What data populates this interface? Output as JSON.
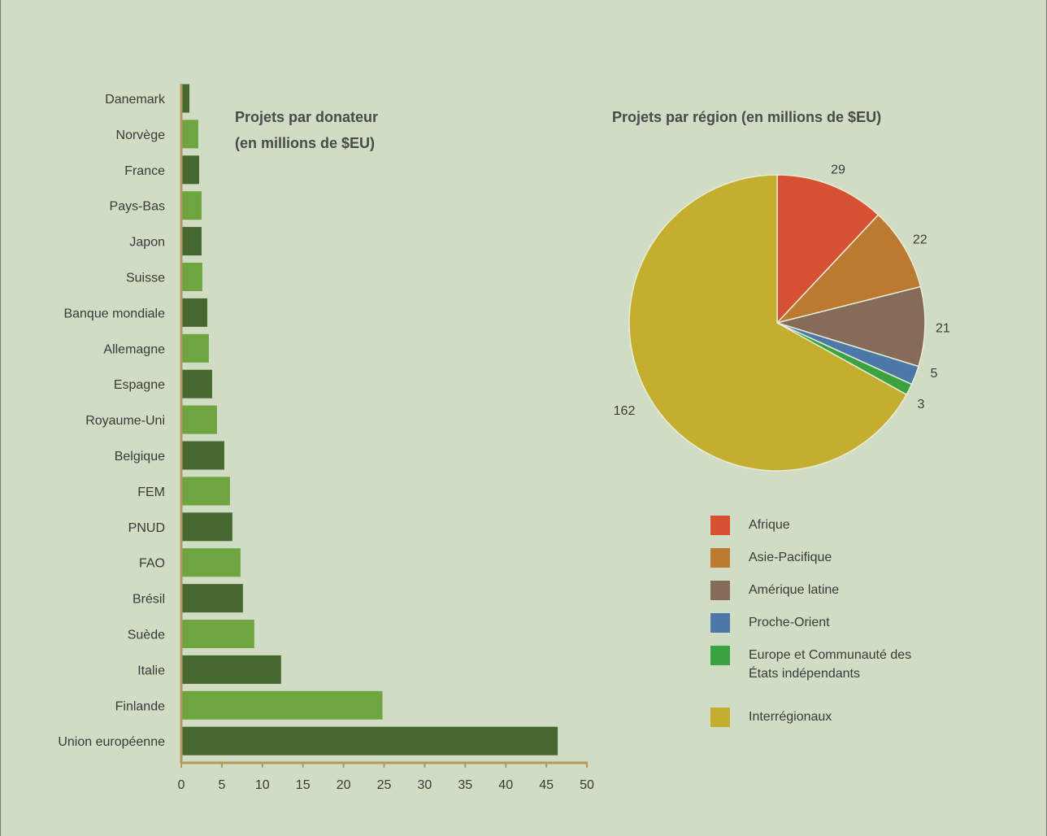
{
  "chart_data": [
    {
      "type": "bar",
      "orientation": "horizontal",
      "title": "Projets par donateur\n(en millions de $EU)",
      "categories": [
        "Danemark",
        "Norvège",
        "France",
        "Pays-Bas",
        "Japon",
        "Suisse",
        "Banque mondiale",
        "Allemagne",
        "Espagne",
        "Royaume-Uni",
        "Belgique",
        "FEM",
        "PNUD",
        "FAO",
        "Brésil",
        "Suède",
        "Italie",
        "Finlande",
        "Union européenne"
      ],
      "values": [
        1.0,
        2.1,
        2.2,
        2.5,
        2.5,
        2.6,
        3.2,
        3.4,
        3.8,
        4.4,
        5.3,
        6.0,
        6.3,
        7.3,
        7.6,
        9.0,
        12.3,
        24.8,
        46.4
      ],
      "bar_colors": [
        "#46682f",
        "#6fa541"
      ],
      "xlim": [
        0,
        50
      ],
      "xticks": [
        0,
        5,
        10,
        15,
        20,
        25,
        30,
        35,
        40,
        45,
        50
      ],
      "xticks_labels": [
        "0",
        "5",
        "10",
        "15",
        "20",
        "25",
        "30",
        "35",
        "40",
        "45",
        "50"
      ],
      "axis_color": "#b09a5e",
      "grid": false
    },
    {
      "type": "pie",
      "title": "Projets par région (en millions de $EU)",
      "categories": [
        "Afrique",
        "Asie-Pacifique",
        "Amérique latine",
        "Proche-Orient",
        "Europe et Communauté des États indépendants",
        "Interrégionaux"
      ],
      "values": [
        29,
        22,
        21,
        5,
        3,
        162
      ],
      "value_labels": [
        "29",
        "22",
        "21",
        "5",
        "3",
        "162"
      ],
      "colors": [
        "#d65132",
        "#bc7930",
        "#876b59",
        "#4b78a7",
        "#3aa340",
        "#c3ae2f"
      ],
      "legend": {
        "position": "bottom-right",
        "items": [
          {
            "label": "Afrique",
            "color": "#d65132"
          },
          {
            "label": "Asie-Pacifique",
            "color": "#bc7930"
          },
          {
            "label": "Amérique latine",
            "color": "#876b59"
          },
          {
            "label": "Proche-Orient",
            "color": "#4b78a7"
          },
          {
            "label": "Europe et Communauté des\nÉtats indépendants",
            "color": "#3aa340"
          },
          {
            "label": "Interrégionaux",
            "color": "#c3ae2f"
          }
        ]
      }
    }
  ]
}
